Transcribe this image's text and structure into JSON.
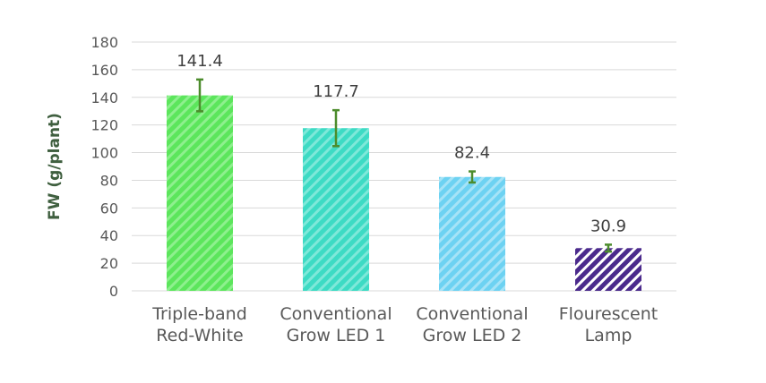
{
  "chart_data": {
    "type": "bar",
    "categories": [
      [
        "Triple-band",
        "Red-White"
      ],
      [
        "Conventional",
        "Grow LED 1"
      ],
      [
        "Conventional",
        "Grow LED 2"
      ],
      [
        "Flourescent",
        "Lamp"
      ]
    ],
    "values": [
      141.4,
      117.7,
      82.4,
      30.9
    ],
    "value_labels": [
      "141.4",
      "117.7",
      "82.4",
      "30.9"
    ],
    "error": [
      11.5,
      13.0,
      4.0,
      2.5
    ],
    "ylabel": "FW (g/plant)",
    "ylim": [
      0,
      180
    ],
    "yticks": [
      0,
      20,
      40,
      60,
      80,
      100,
      120,
      140,
      160,
      180
    ],
    "grid": true,
    "colors": {
      "bar_fills": [
        "#5ce65c",
        "#3ddbc4",
        "#6dd2f2",
        "#4b2a8c"
      ],
      "bar_stripes": [
        "#8ef08e",
        "#7fe8d9",
        "#a5e3f7",
        "#ffffff"
      ],
      "error_bar": "#4c8c2c",
      "grid": "#d9d9d9"
    }
  }
}
